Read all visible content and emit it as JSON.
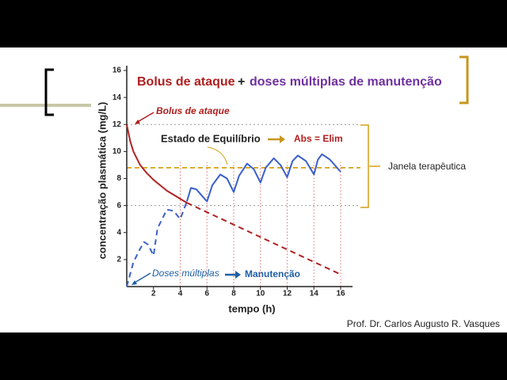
{
  "chart_data": {
    "type": "line",
    "title_parts": [
      "Bolus de ataque",
      "+",
      "doses múltiplas de manutenção"
    ],
    "x_label": "tempo (h)",
    "y_label": "concentração plasmática  (mg/L)",
    "annotations": [
      "Bolus de ataque",
      "Estado de Equilíbrio",
      "Abs = Elim",
      "Janela terapêutica",
      "Doses múltiplas",
      "Manutenção"
    ],
    "footer": "Prof. Dr. Carlos Augusto R. Vasques",
    "xlim": [
      0,
      16
    ],
    "ylim": [
      0,
      16
    ],
    "xticks": [
      2,
      4,
      6,
      8,
      10,
      12,
      14,
      16
    ],
    "yticks": [
      2,
      4,
      6,
      8,
      10,
      12,
      14,
      16
    ],
    "therapeutic_window": [
      6,
      12
    ],
    "steady_state_level": 8.8,
    "series": [
      {
        "color": "#3a5fcd",
        "dashed": true,
        "x": [
          0,
          0.5,
          1,
          1.3,
          1.6,
          2,
          2.3,
          3,
          3.5,
          4,
          4.5
        ],
        "values": [
          0,
          1.8,
          2.8,
          3.3,
          3.1,
          2.3,
          4.3,
          5.7,
          5.6,
          5.0,
          6.3
        ]
      },
      {
        "color": "#3a5fcd",
        "dashed": false,
        "x": [
          4.5,
          4.8,
          5.2,
          6,
          6.4,
          7,
          7.5,
          8,
          8.4,
          9,
          9.5,
          10,
          10.4,
          11,
          11.5,
          12,
          12.4,
          12.8,
          13.4,
          14,
          14.3,
          14.6,
          15.2,
          16
        ],
        "values": [
          6.3,
          7.3,
          7.2,
          6.3,
          7.5,
          8.3,
          8.0,
          7.0,
          8.2,
          9.1,
          8.7,
          7.7,
          8.8,
          9.5,
          9.0,
          8.1,
          9.3,
          9.7,
          9.3,
          8.3,
          9.4,
          9.8,
          9.4,
          8.5
        ]
      },
      {
        "color": "#b22222",
        "dashed": false,
        "x": [
          0,
          0.25,
          0.5,
          1,
          1.5,
          2,
          2.5,
          3,
          3.5,
          4,
          4.5
        ],
        "values": [
          12,
          10.8,
          10,
          9,
          8.4,
          7.9,
          7.5,
          7.1,
          6.8,
          6.5,
          6.2
        ]
      },
      {
        "color": "#b22222",
        "dashed": true,
        "x": [
          4.5,
          16
        ],
        "values": [
          6.2,
          0.9
        ]
      }
    ]
  }
}
